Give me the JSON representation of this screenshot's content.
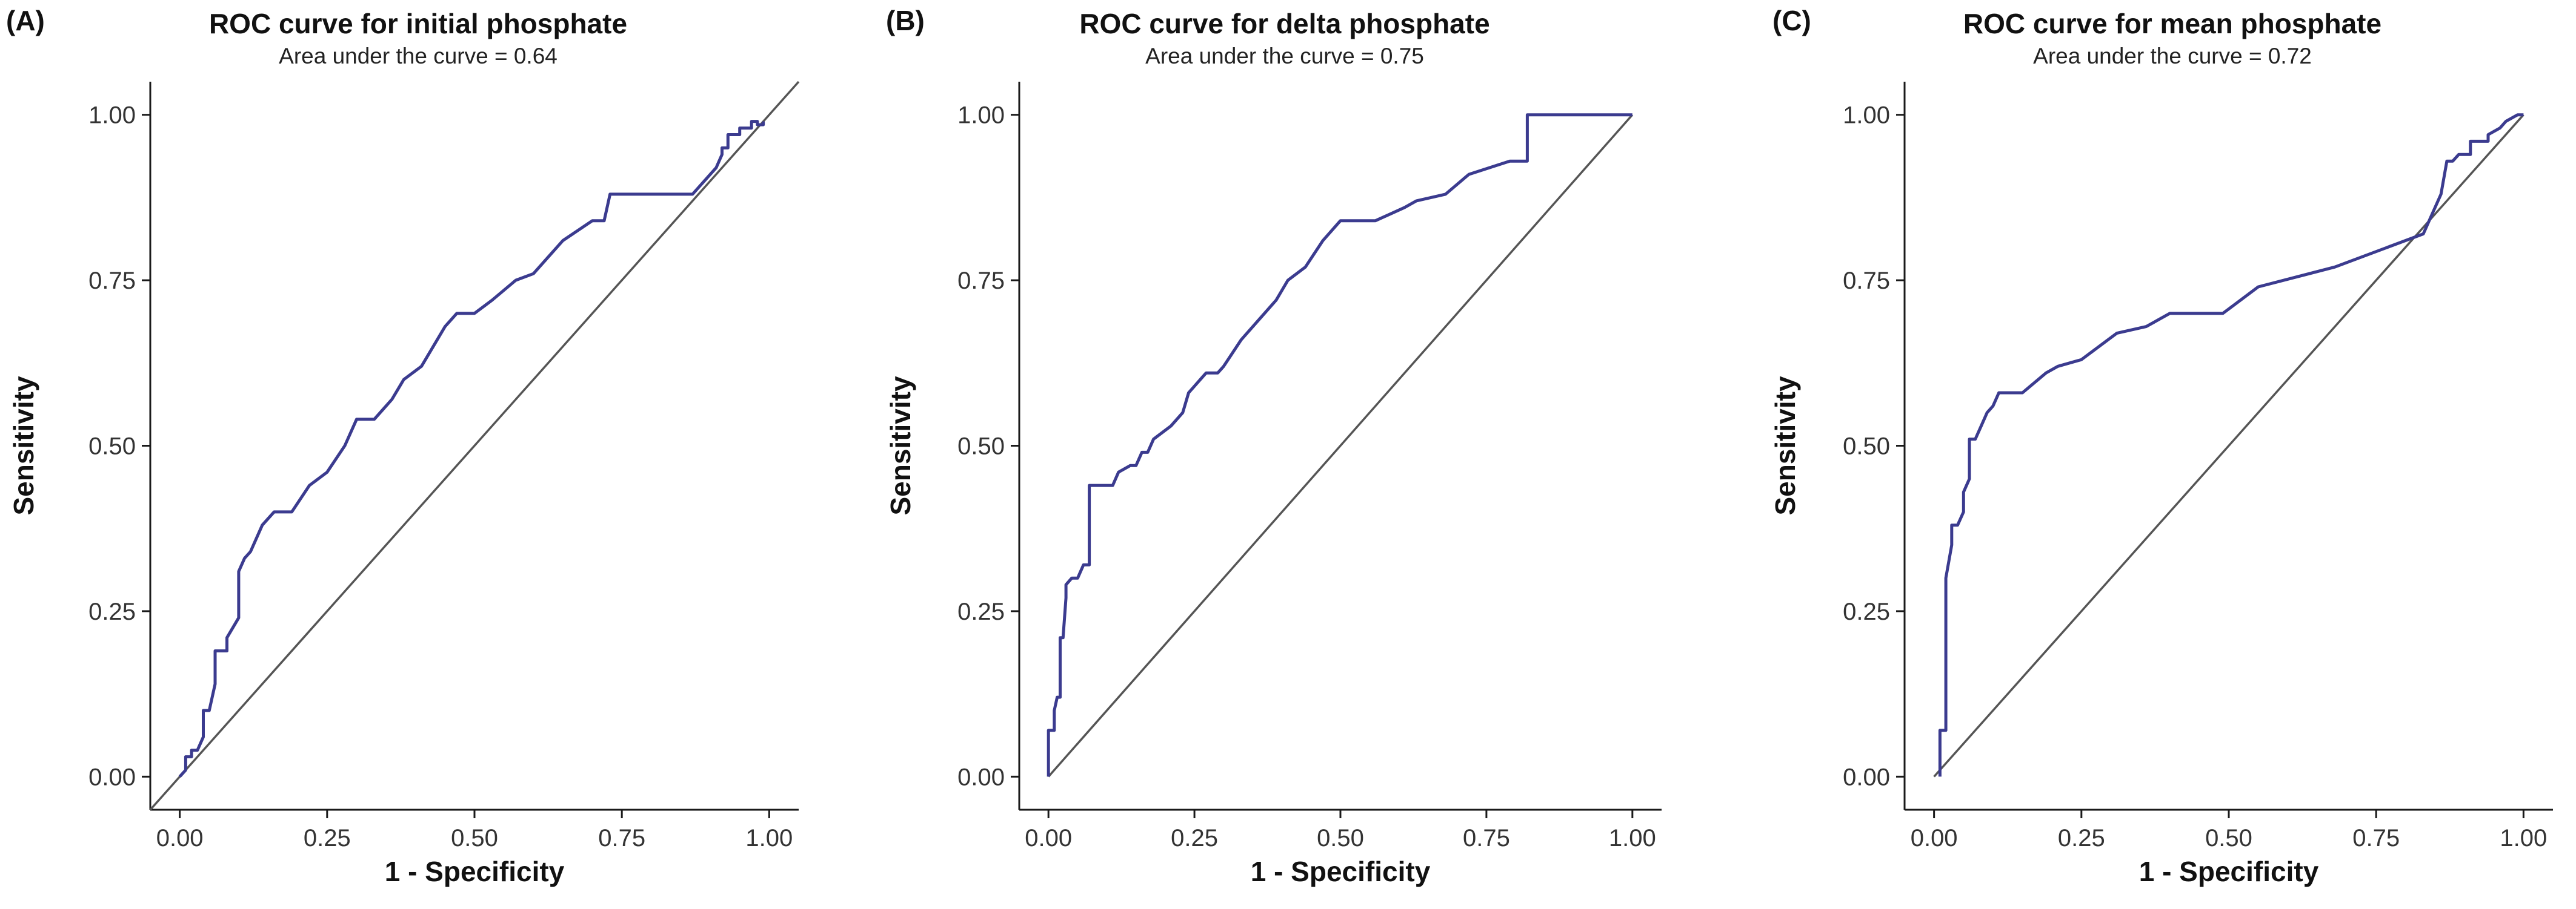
{
  "chart_data": [
    {
      "type": "line",
      "panel_label": "(A)",
      "title": "ROC curve for initial phosphate",
      "subtitle": "Area under the curve = 0.64",
      "xlabel": "1 - Specificity",
      "ylabel": "Sensitivity",
      "xlim": [
        -0.05,
        1.05
      ],
      "ylim": [
        -0.05,
        1.05
      ],
      "x_ticks": [
        "0.00",
        "0.25",
        "0.50",
        "0.75",
        "1.00"
      ],
      "y_ticks": [
        "0.00",
        "0.25",
        "0.50",
        "0.75",
        "1.00"
      ],
      "reference_line": {
        "x": [
          -0.05,
          1.05
        ],
        "y": [
          -0.05,
          1.05
        ]
      },
      "series": [
        {
          "name": "ROC",
          "x": [
            0,
            0.01,
            0.01,
            0.02,
            0.02,
            0.03,
            0.04,
            0.04,
            0.05,
            0.06,
            0.06,
            0.08,
            0.08,
            0.1,
            0.1,
            0.11,
            0.12,
            0.14,
            0.16,
            0.19,
            0.22,
            0.25,
            0.28,
            0.3,
            0.33,
            0.36,
            0.38,
            0.41,
            0.45,
            0.47,
            0.5,
            0.53,
            0.57,
            0.6,
            0.62,
            0.65,
            0.7,
            0.72,
            0.73,
            0.87,
            0.91,
            0.92,
            0.92,
            0.93,
            0.93,
            0.95,
            0.95,
            0.97,
            0.97,
            0.98,
            0.98,
            0.99,
            0.99
          ],
          "y": [
            0,
            0.01,
            0.03,
            0.03,
            0.04,
            0.04,
            0.06,
            0.1,
            0.1,
            0.14,
            0.19,
            0.19,
            0.21,
            0.24,
            0.31,
            0.33,
            0.34,
            0.38,
            0.4,
            0.4,
            0.44,
            0.46,
            0.5,
            0.54,
            0.54,
            0.57,
            0.6,
            0.62,
            0.68,
            0.7,
            0.7,
            0.72,
            0.75,
            0.76,
            0.78,
            0.81,
            0.84,
            0.84,
            0.88,
            0.88,
            0.92,
            0.94,
            0.95,
            0.95,
            0.97,
            0.97,
            0.98,
            0.98,
            0.99,
            0.99,
            0.985,
            0.985,
            0.99
          ]
        }
      ]
    },
    {
      "type": "line",
      "panel_label": "(B)",
      "title": "ROC curve for delta phosphate",
      "subtitle": "Area under the curve = 0.75",
      "xlabel": "1 - Specificity",
      "ylabel": "Sensitivity",
      "xlim": [
        -0.05,
        1.05
      ],
      "ylim": [
        -0.05,
        1.05
      ],
      "x_ticks": [
        "0.00",
        "0.25",
        "0.50",
        "0.75",
        "1.00"
      ],
      "y_ticks": [
        "0.00",
        "0.25",
        "0.50",
        "0.75",
        "1.00"
      ],
      "reference_line": {
        "x": [
          0,
          1
        ],
        "y": [
          0,
          1
        ]
      },
      "series": [
        {
          "name": "ROC",
          "x": [
            0,
            0,
            0.01,
            0.01,
            0.015,
            0.02,
            0.02,
            0.025,
            0.03,
            0.03,
            0.04,
            0.05,
            0.06,
            0.07,
            0.07,
            0.11,
            0.12,
            0.14,
            0.15,
            0.16,
            0.17,
            0.18,
            0.21,
            0.23,
            0.24,
            0.25,
            0.27,
            0.29,
            0.3,
            0.33,
            0.37,
            0.39,
            0.41,
            0.44,
            0.47,
            0.5,
            0.56,
            0.61,
            0.63,
            0.68,
            0.72,
            0.79,
            0.82,
            0.82,
            1
          ],
          "y": [
            0,
            0.07,
            0.07,
            0.1,
            0.12,
            0.12,
            0.21,
            0.21,
            0.27,
            0.29,
            0.3,
            0.3,
            0.32,
            0.32,
            0.44,
            0.44,
            0.46,
            0.47,
            0.47,
            0.49,
            0.49,
            0.51,
            0.53,
            0.55,
            0.58,
            0.59,
            0.61,
            0.61,
            0.62,
            0.66,
            0.7,
            0.72,
            0.75,
            0.77,
            0.81,
            0.84,
            0.84,
            0.86,
            0.87,
            0.88,
            0.91,
            0.93,
            0.93,
            1,
            1
          ]
        }
      ]
    },
    {
      "type": "line",
      "panel_label": "(C)",
      "title": "ROC curve for mean phosphate",
      "subtitle": "Area under the curve = 0.72",
      "xlabel": "1 - Specificity",
      "ylabel": "Sensitivity",
      "xlim": [
        -0.05,
        1.05
      ],
      "ylim": [
        -0.05,
        1.05
      ],
      "x_ticks": [
        "0.00",
        "0.25",
        "0.50",
        "0.75",
        "1.00"
      ],
      "y_ticks": [
        "0.00",
        "0.25",
        "0.50",
        "0.75",
        "1.00"
      ],
      "reference_line": {
        "x": [
          0,
          1
        ],
        "y": [
          0,
          1
        ]
      },
      "series": [
        {
          "name": "ROC",
          "x": [
            0.01,
            0.01,
            0.02,
            0.02,
            0.03,
            0.03,
            0.04,
            0.05,
            0.05,
            0.06,
            0.06,
            0.07,
            0.08,
            0.09,
            0.1,
            0.11,
            0.15,
            0.19,
            0.21,
            0.25,
            0.31,
            0.36,
            0.4,
            0.49,
            0.55,
            0.68,
            0.77,
            0.83,
            0.86,
            0.87,
            0.88,
            0.89,
            0.91,
            0.91,
            0.94,
            0.94,
            0.96,
            0.97,
            0.99,
            1
          ],
          "y": [
            0,
            0.07,
            0.07,
            0.3,
            0.35,
            0.38,
            0.38,
            0.4,
            0.43,
            0.45,
            0.51,
            0.51,
            0.53,
            0.55,
            0.56,
            0.58,
            0.58,
            0.61,
            0.62,
            0.63,
            0.67,
            0.68,
            0.7,
            0.7,
            0.74,
            0.77,
            0.8,
            0.82,
            0.88,
            0.93,
            0.93,
            0.94,
            0.94,
            0.96,
            0.96,
            0.97,
            0.98,
            0.99,
            1,
            1
          ]
        }
      ]
    }
  ]
}
